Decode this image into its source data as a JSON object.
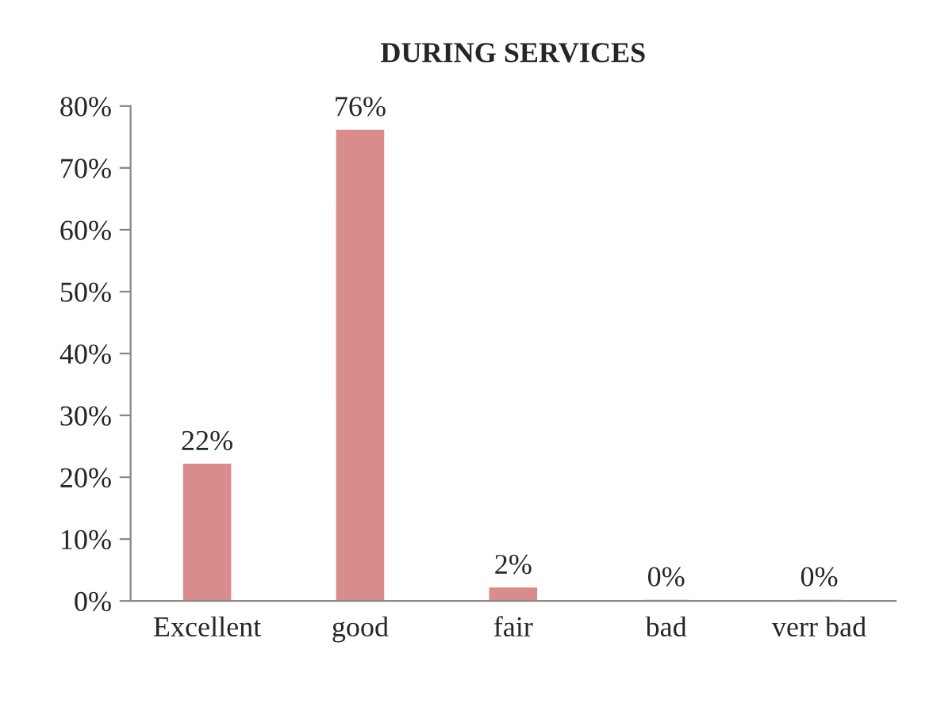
{
  "chart_data": {
    "type": "bar",
    "title": "DURING SERVICES",
    "categories": [
      "Excellent",
      "good",
      "fair",
      "bad",
      "verr bad"
    ],
    "values": [
      22,
      76,
      2,
      0,
      0
    ],
    "value_labels": [
      "22%",
      "76%",
      "2%",
      "0%",
      "0%"
    ],
    "color": "#d98c8c",
    "ylim": [
      0,
      80
    ],
    "yticks": [
      {
        "value": 0,
        "label": "0%"
      },
      {
        "value": 10,
        "label": "10%"
      },
      {
        "value": 20,
        "label": "20%"
      },
      {
        "value": 30,
        "label": "30%"
      },
      {
        "value": 40,
        "label": "40%"
      },
      {
        "value": 50,
        "label": "50%"
      },
      {
        "value": 60,
        "label": "60%"
      },
      {
        "value": 70,
        "label": "70%"
      },
      {
        "value": 80,
        "label": "80%"
      }
    ],
    "grid": false,
    "legend": false
  }
}
